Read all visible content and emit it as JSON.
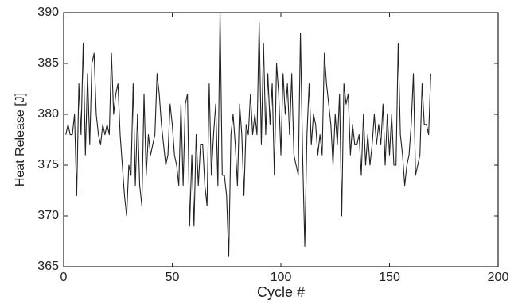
{
  "chart_data": {
    "type": "line",
    "xlabel": "Cycle #",
    "ylabel": "Heat Release [J]",
    "x": [
      1,
      2,
      3,
      4,
      5,
      6,
      7,
      8,
      9,
      10,
      11,
      12,
      13,
      14,
      15,
      16,
      17,
      18,
      19,
      20,
      21,
      22,
      23,
      24,
      25,
      26,
      27,
      28,
      29,
      30,
      31,
      32,
      33,
      34,
      35,
      36,
      37,
      38,
      39,
      40,
      41,
      42,
      43,
      44,
      45,
      46,
      47,
      48,
      49,
      50,
      51,
      52,
      53,
      54,
      55,
      56,
      57,
      58,
      59,
      60,
      61,
      62,
      63,
      64,
      65,
      66,
      67,
      68,
      69,
      70,
      71,
      72,
      73,
      74,
      75,
      76,
      77,
      78,
      79,
      80,
      81,
      82,
      83,
      84,
      85,
      86,
      87,
      88,
      89,
      90,
      91,
      92,
      93,
      94,
      95,
      96,
      97,
      98,
      99,
      100,
      101,
      102,
      103,
      104,
      105,
      106,
      107,
      108,
      109,
      110,
      111,
      112,
      113,
      114,
      115,
      116,
      117,
      118,
      119,
      120,
      121,
      122,
      123,
      124,
      125,
      126,
      127,
      128,
      129,
      130,
      131,
      132,
      133,
      134,
      135,
      136,
      137,
      138,
      139,
      140,
      141,
      142,
      143,
      144,
      145,
      146,
      147,
      148,
      149,
      150,
      151,
      152,
      153,
      154,
      155,
      156,
      157,
      158,
      159,
      160,
      161,
      162,
      163,
      164,
      165,
      166,
      167,
      168,
      169
    ],
    "series": [
      {
        "name": "Heat Release",
        "color": "#222222",
        "values": [
          378,
          379,
          378,
          378,
          380,
          372,
          383,
          378,
          387,
          376,
          384,
          377,
          385,
          386,
          380,
          378,
          377,
          379,
          378,
          379,
          378,
          386,
          380,
          382,
          383,
          378,
          375,
          372,
          370,
          375,
          374,
          383,
          373,
          380,
          373,
          371,
          382,
          374,
          378,
          376,
          377,
          378,
          384,
          382,
          379,
          377,
          375,
          376,
          381,
          379,
          376,
          375,
          373,
          381,
          373,
          381,
          382,
          369,
          376,
          369,
          378,
          373,
          377,
          377,
          373,
          371,
          383,
          374,
          378,
          381,
          373,
          390,
          374,
          374,
          372,
          366,
          378,
          380,
          377,
          373,
          381,
          378,
          372,
          379,
          378,
          382,
          378,
          380,
          378,
          389,
          377,
          387,
          378,
          384,
          379,
          383,
          374,
          385,
          382,
          376,
          384,
          380,
          383,
          378,
          384,
          376,
          375,
          374,
          388,
          376,
          367,
          378,
          383,
          377,
          380,
          379,
          376,
          378,
          376,
          386,
          383,
          381,
          379,
          375,
          380,
          377,
          382,
          370,
          383,
          381,
          382,
          376,
          379,
          377,
          377,
          378,
          374,
          380,
          375,
          378,
          375,
          377,
          380,
          377,
          379,
          377,
          381,
          375,
          380,
          376,
          380,
          375,
          375,
          387,
          378,
          376,
          373,
          375,
          376,
          379,
          384,
          374,
          375,
          376,
          383,
          379,
          379,
          378,
          384
        ]
      }
    ],
    "xlim": [
      0,
      200
    ],
    "ylim": [
      365,
      390
    ],
    "xticks": [
      0,
      50,
      100,
      150,
      200
    ],
    "yticks": [
      365,
      370,
      375,
      380,
      385,
      390
    ]
  }
}
